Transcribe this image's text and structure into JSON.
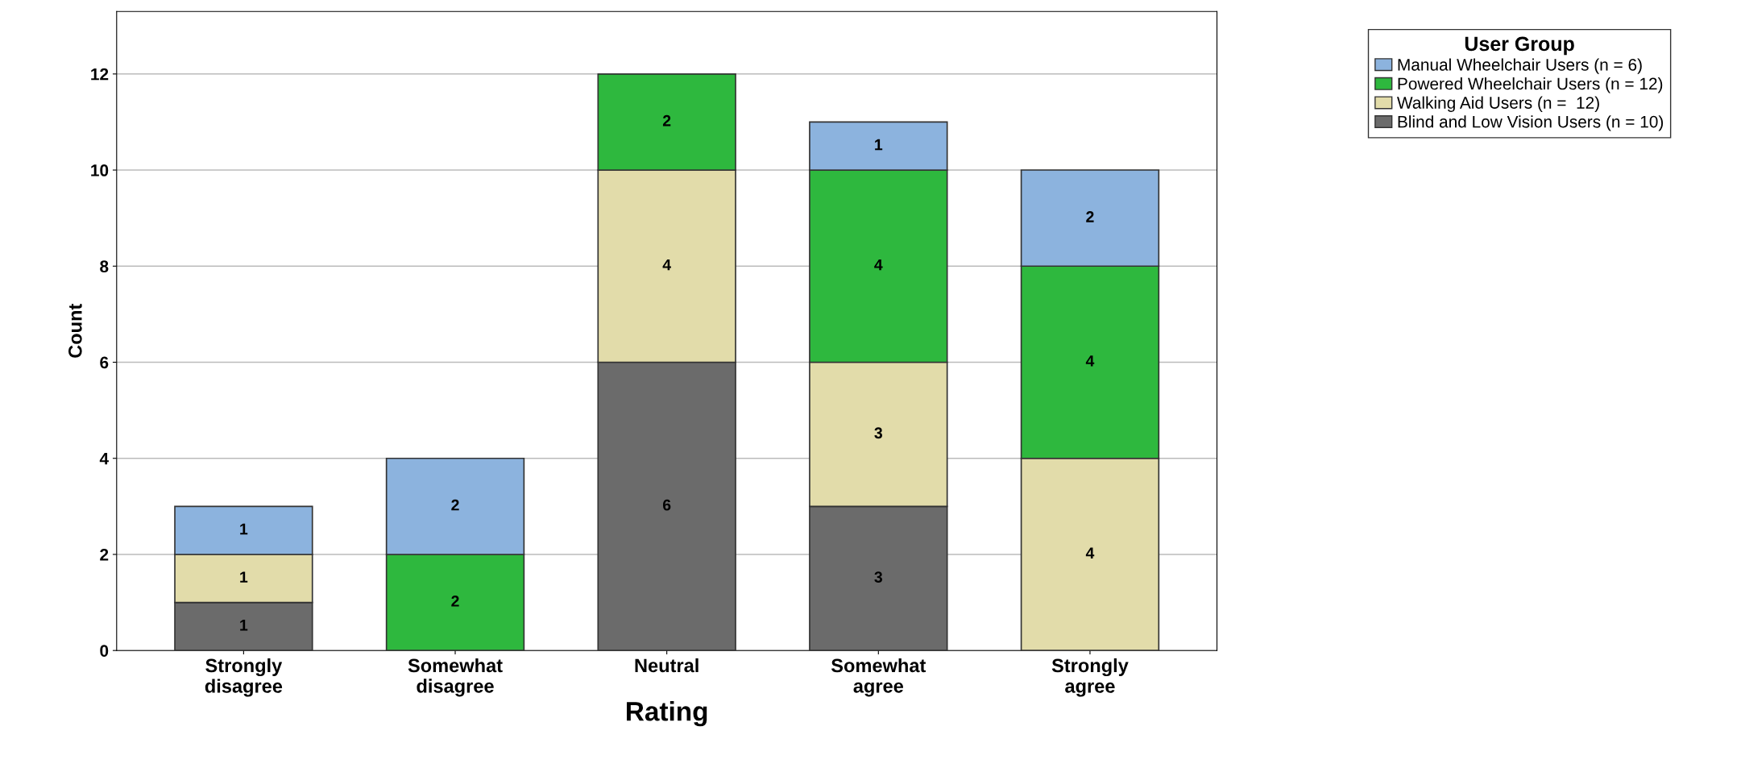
{
  "chart_data": {
    "type": "bar",
    "stacked": true,
    "xlabel": "Rating",
    "ylabel": "Count",
    "legend_title": "User Group",
    "categories": [
      "Strongly\ndisagree",
      "Somewhat\ndisagree",
      "Neutral",
      "Somewhat\nagree",
      "Strongly\nagree"
    ],
    "series": [
      {
        "name": "Blind and Low Vision Users (n = 10)",
        "color": "#6b6b6b",
        "values": [
          1,
          null,
          6,
          3,
          null
        ]
      },
      {
        "name": "Walking Aid Users (n =  12)",
        "color": "#e2dcaa",
        "values": [
          1,
          null,
          4,
          3,
          4
        ]
      },
      {
        "name": "Powered Wheelchair Users (n = 12)",
        "color": "#2eb83e",
        "values": [
          null,
          2,
          2,
          4,
          4
        ]
      },
      {
        "name": "Manual Wheelchair Users (n = 6)",
        "color": "#8cb3de",
        "values": [
          1,
          2,
          null,
          1,
          2
        ]
      }
    ],
    "ylim": [
      0,
      13.3
    ],
    "yticks": [
      0,
      2,
      4,
      6,
      8,
      10,
      12
    ],
    "grid": "y",
    "data_labels": true,
    "legend": "top right"
  }
}
